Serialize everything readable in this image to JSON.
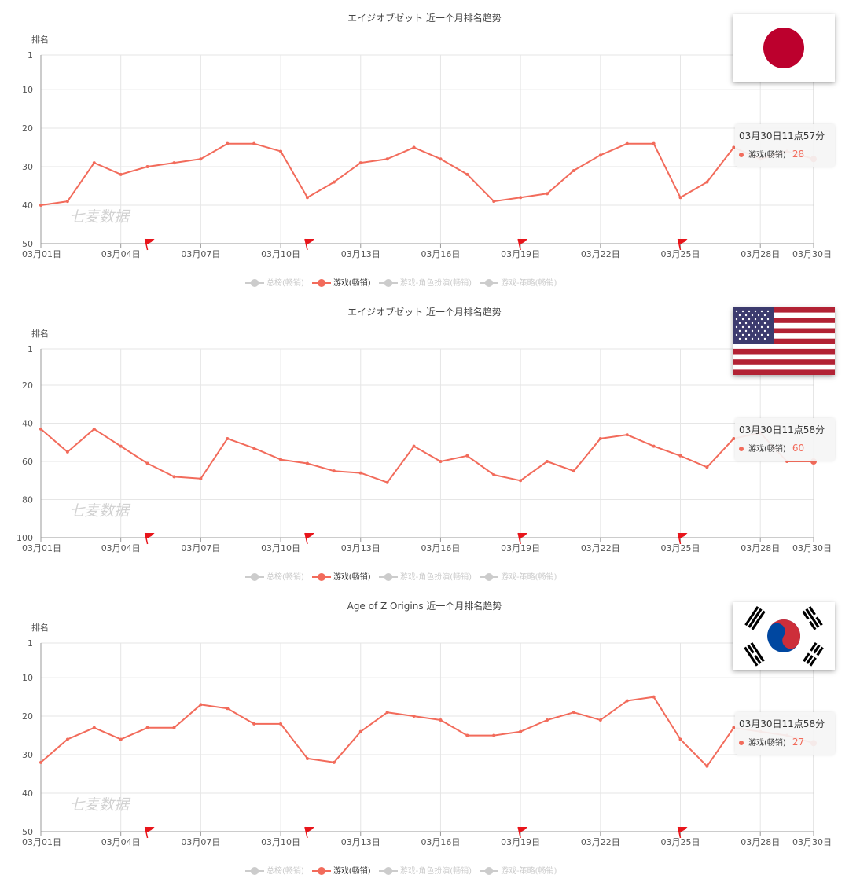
{
  "colors": {
    "series": "#f26b5b",
    "flag": "#e8151b",
    "grid": "#e6e6e6",
    "axis": "#999999"
  },
  "legend_items": [
    {
      "label": "总榜(畅销)",
      "active": false
    },
    {
      "label": "游戏(畅销)",
      "active": true
    },
    {
      "label": "游戏-角色扮演(畅销)",
      "active": false
    },
    {
      "label": "游戏-策略(畅销)",
      "active": false
    }
  ],
  "watermark": "七麦数据",
  "panels": [
    {
      "title": "エイジオブゼット 近一个月排名趋势",
      "flag_icon": "japan-flag-icon",
      "ylabel": "排名",
      "tooltip": {
        "time": "03月30日11点57分",
        "series": "游戏(畅销)",
        "value": "28"
      }
    },
    {
      "title": "エイジオブゼット 近一个月排名趋势",
      "flag_icon": "usa-flag-icon",
      "ylabel": "排名",
      "tooltip": {
        "time": "03月30日11点58分",
        "series": "游戏(畅销)",
        "value": "60"
      }
    },
    {
      "title": "Age of Z Origins 近一个月排名趋势",
      "flag_icon": "south-korea-flag-icon",
      "ylabel": "排名",
      "tooltip": {
        "time": "03月30日11点58分",
        "series": "游戏(畅销)",
        "value": "27"
      }
    }
  ],
  "chart_data": [
    {
      "type": "line",
      "title": "エイジオブゼット 近一个月排名趋势",
      "ylabel": "排名",
      "y_inverted": true,
      "ylim": [
        1,
        50
      ],
      "y_ticks": [
        1,
        10,
        20,
        30,
        40,
        50
      ],
      "x_ticks": [
        "03月01日",
        "03月04日",
        "03月07日",
        "03月10日",
        "03月13日",
        "03月16日",
        "03月19日",
        "03月22日",
        "03月25日",
        "03月28日",
        "03月30日"
      ],
      "x": [
        "03月01日",
        "03月02日",
        "03月03日",
        "03月04日",
        "03月05日",
        "03月06日",
        "03月07日",
        "03月08日",
        "03月09日",
        "03月10日",
        "03月11日",
        "03月12日",
        "03月13日",
        "03月14日",
        "03月15日",
        "03月16日",
        "03月17日",
        "03月18日",
        "03月19日",
        "03月20日",
        "03月21日",
        "03月22日",
        "03月23日",
        "03月24日",
        "03月25日",
        "03月26日",
        "03月27日",
        "03月28日",
        "03月29日",
        "03月30日"
      ],
      "event_flags": [
        "03月05日",
        "03月11日",
        "03月19日",
        "03月25日"
      ],
      "grid": true,
      "series": [
        {
          "name": "游戏(畅销)",
          "values": [
            40,
            39,
            29,
            32,
            30,
            29,
            28,
            24,
            24,
            26,
            38,
            34,
            29,
            28,
            25,
            28,
            32,
            39,
            38,
            37,
            31,
            27,
            24,
            24,
            38,
            34,
            25,
            28,
            26,
            28
          ]
        }
      ]
    },
    {
      "type": "line",
      "title": "エイジオブゼット 近一个月排名趋势",
      "ylabel": "排名",
      "y_inverted": true,
      "ylim": [
        1,
        100
      ],
      "y_ticks": [
        1,
        20,
        40,
        60,
        80,
        100
      ],
      "x_ticks": [
        "03月01日",
        "03月04日",
        "03月07日",
        "03月10日",
        "03月13日",
        "03月16日",
        "03月19日",
        "03月22日",
        "03月25日",
        "03月28日",
        "03月30日"
      ],
      "x": [
        "03月01日",
        "03月02日",
        "03月03日",
        "03月04日",
        "03月05日",
        "03月06日",
        "03月07日",
        "03月08日",
        "03月09日",
        "03月10日",
        "03月11日",
        "03月12日",
        "03月13日",
        "03月14日",
        "03月15日",
        "03月16日",
        "03月17日",
        "03月18日",
        "03月19日",
        "03月20日",
        "03月21日",
        "03月22日",
        "03月23日",
        "03月24日",
        "03月25日",
        "03月26日",
        "03月27日",
        "03月28日",
        "03月29日",
        "03月30日"
      ],
      "event_flags": [
        "03月05日",
        "03月11日",
        "03月19日",
        "03月25日"
      ],
      "grid": true,
      "series": [
        {
          "name": "游戏(畅销)",
          "values": [
            43,
            55,
            43,
            52,
            61,
            68,
            69,
            48,
            53,
            59,
            61,
            65,
            66,
            71,
            52,
            60,
            57,
            67,
            70,
            60,
            65,
            48,
            46,
            52,
            57,
            63,
            48,
            45,
            60,
            60
          ]
        }
      ]
    },
    {
      "type": "line",
      "title": "Age of Z Origins 近一个月排名趋势",
      "ylabel": "排名",
      "y_inverted": true,
      "ylim": [
        1,
        50
      ],
      "y_ticks": [
        1,
        10,
        20,
        30,
        40,
        50
      ],
      "x_ticks": [
        "03月01日",
        "03月04日",
        "03月07日",
        "03月10日",
        "03月13日",
        "03月16日",
        "03月19日",
        "03月22日",
        "03月25日",
        "03月28日",
        "03月30日"
      ],
      "x": [
        "03月01日",
        "03月02日",
        "03月03日",
        "03月04日",
        "03月05日",
        "03月06日",
        "03月07日",
        "03月08日",
        "03月09日",
        "03月10日",
        "03月11日",
        "03月12日",
        "03月13日",
        "03月14日",
        "03月15日",
        "03月16日",
        "03月17日",
        "03月18日",
        "03月19日",
        "03月20日",
        "03月21日",
        "03月22日",
        "03月23日",
        "03月24日",
        "03月25日",
        "03月26日",
        "03月27日",
        "03月28日",
        "03月29日",
        "03月30日"
      ],
      "event_flags": [
        "03月05日",
        "03月11日",
        "03月19日",
        "03月25日"
      ],
      "grid": true,
      "series": [
        {
          "name": "游戏(畅销)",
          "values": [
            32,
            26,
            23,
            26,
            23,
            23,
            17,
            18,
            22,
            22,
            31,
            32,
            24,
            19,
            20,
            21,
            25,
            25,
            24,
            21,
            19,
            21,
            16,
            15,
            26,
            33,
            23,
            24,
            25,
            27
          ]
        }
      ]
    }
  ]
}
